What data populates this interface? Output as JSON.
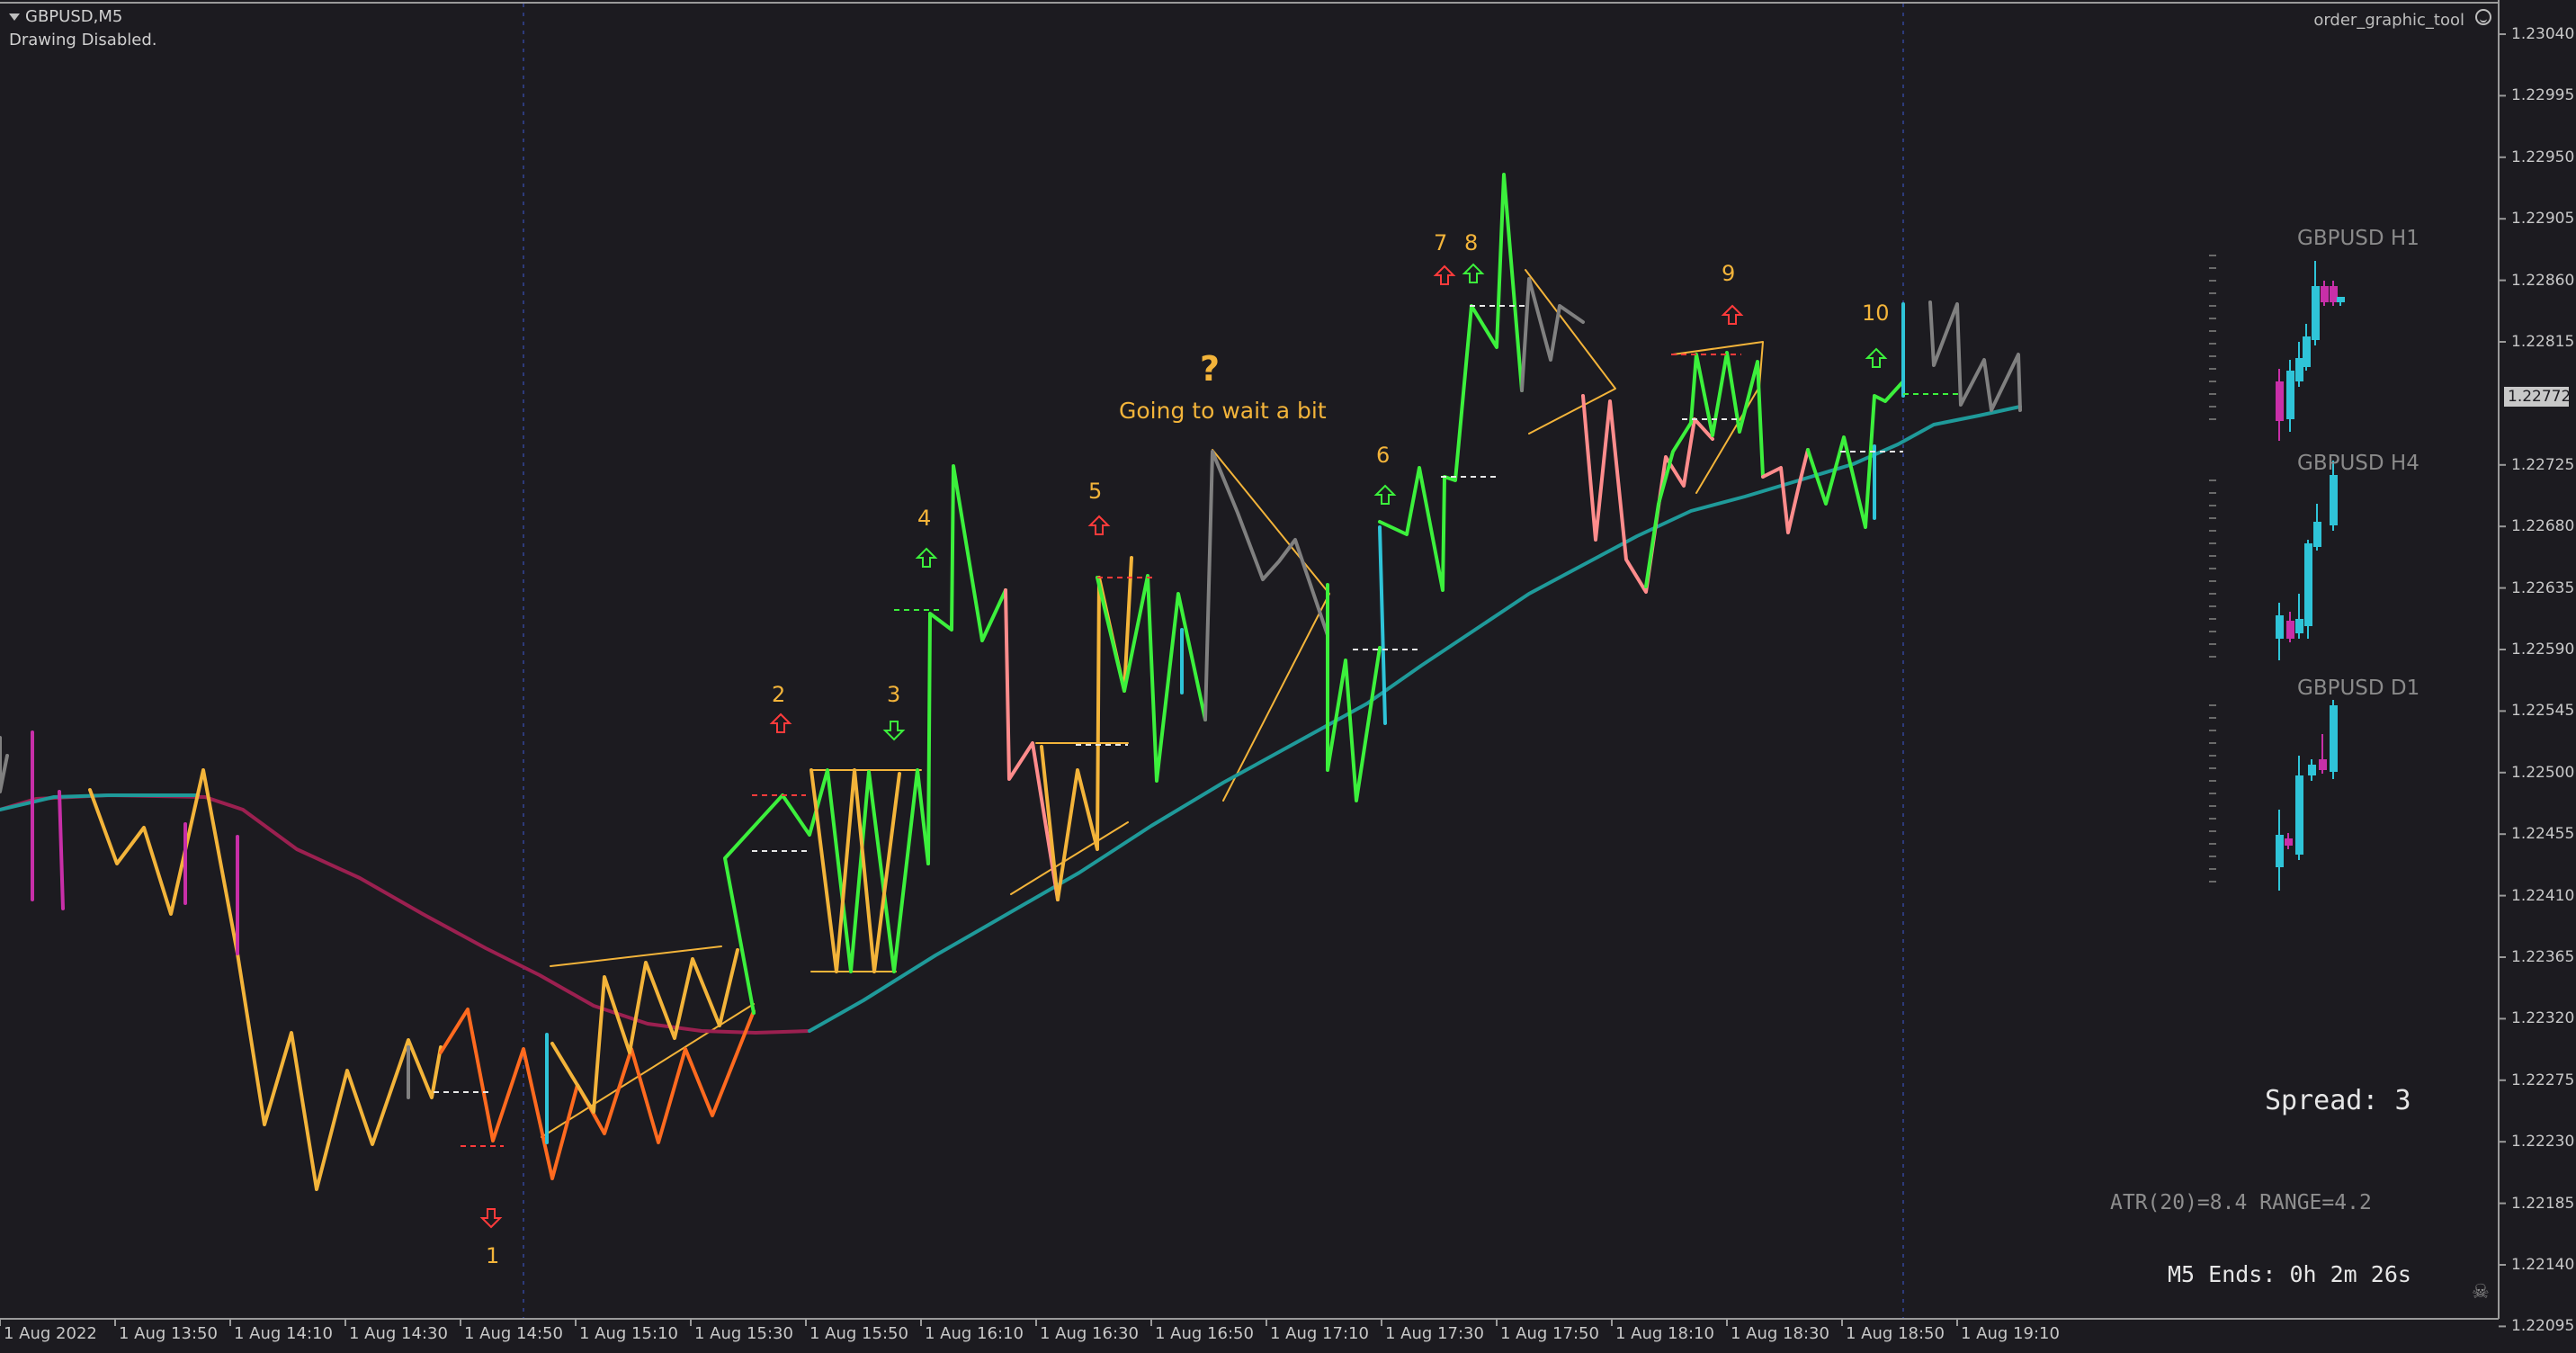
{
  "header": {
    "symbol": "GBPUSD,M5",
    "status": "Drawing Disabled."
  },
  "tool": {
    "name": "order_graphic_tool"
  },
  "price_axis": {
    "labels": [
      "1.23040",
      "1.22995",
      "1.22950",
      "1.22905",
      "1.22860",
      "1.22815",
      "1.22772",
      "1.22725",
      "1.22680",
      "1.22635",
      "1.22590",
      "1.22545",
      "1.22500",
      "1.22455",
      "1.22410",
      "1.22365",
      "1.22320",
      "1.22275",
      "1.22230",
      "1.22185",
      "1.22140",
      "1.22095"
    ],
    "current": "1.22772"
  },
  "time_axis": {
    "labels": [
      "1 Aug 2022",
      "1 Aug 13:50",
      "1 Aug 14:10",
      "1 Aug 14:30",
      "1 Aug 14:50",
      "1 Aug 15:10",
      "1 Aug 15:30",
      "1 Aug 15:50",
      "1 Aug 16:10",
      "1 Aug 16:30",
      "1 Aug 16:50",
      "1 Aug 17:10",
      "1 Aug 17:30",
      "1 Aug 17:50",
      "1 Aug 18:10",
      "1 Aug 18:30",
      "1 Aug 18:50",
      "1 Aug 19:10"
    ]
  },
  "mtf": {
    "h1": "GBPUSD H1",
    "h4": "GBPUSD H4",
    "d1": "GBPUSD D1"
  },
  "info": {
    "spread": "Spread: 3",
    "atr": "ATR(20)=8.4  RANGE=4.2",
    "m5_end": "M5 Ends: 0h 2m 26s"
  },
  "annotations": {
    "numbers": [
      "1",
      "2",
      "3",
      "4",
      "5",
      "6",
      "7",
      "8",
      "9",
      "10"
    ],
    "question": "?",
    "note": "Going to wait a bit"
  },
  "colors": {
    "background": "#1c1b20",
    "bull": "#3cf03c",
    "bear_light": "#ff8c8c",
    "neutral": "#808080",
    "orange": "#ff6a1f",
    "magenta": "#c82fa8",
    "cyan": "#2fc4d8",
    "ma_teal": "#1f9a9a",
    "ma_maroon": "#9b2050",
    "yellow": "#f3b43a",
    "arrow_up": "#3cf03c",
    "arrow_down": "#ff3b3b"
  },
  "icons": [
    "menu-caret-icon",
    "smiley-icon",
    "arrow-up-icon",
    "arrow-down-icon",
    "skull-icon"
  ]
}
